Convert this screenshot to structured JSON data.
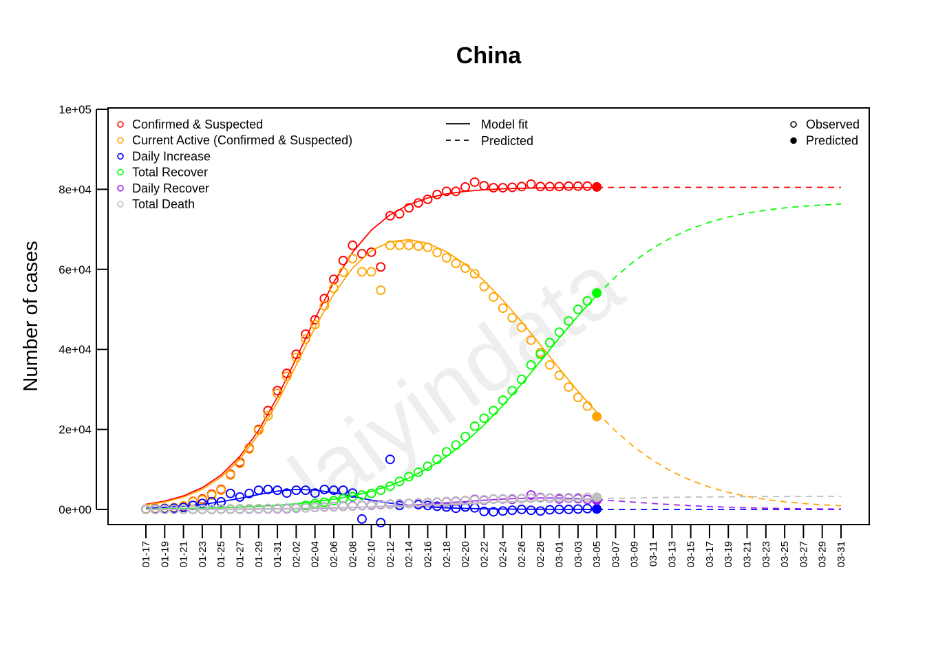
{
  "chart_data": {
    "type": "scatter",
    "title": "China",
    "xlabel": "",
    "ylabel": "Number of cases",
    "watermark": "laiyindata",
    "ylim": [
      0,
      100000
    ],
    "y_ticks": [
      0,
      20000,
      40000,
      60000,
      80000,
      100000
    ],
    "y_tick_labels": [
      "0e+00",
      "2e+04",
      "4e+04",
      "6e+04",
      "8e+04",
      "1e+05"
    ],
    "x_start_label": "01-17",
    "x_days_range": [
      0,
      74
    ],
    "x_tick_labels": [
      "01-17",
      "01-19",
      "01-21",
      "01-23",
      "01-25",
      "01-27",
      "01-29",
      "01-31",
      "02-02",
      "02-04",
      "02-06",
      "02-08",
      "02-10",
      "02-12",
      "02-14",
      "02-16",
      "02-18",
      "02-20",
      "02-22",
      "02-24",
      "02-26",
      "02-28",
      "03-01",
      "03-03",
      "03-05",
      "03-07",
      "03-09",
      "03-11",
      "03-13",
      "03-15",
      "03-17",
      "03-19",
      "03-21",
      "03-23",
      "03-25",
      "03-27",
      "03-29",
      "03-31"
    ],
    "x_tick_step_days": 2,
    "observed_days": [
      0,
      47
    ],
    "predicted_point_day": 48,
    "fit_step_days": 2,
    "grid": false,
    "legends": {
      "series": {
        "placement": "top-left",
        "entries": [
          "Confirmed & Suspected",
          "Current Active (Confirmed & Suspected)",
          "Daily Increase",
          "Total Recover",
          "Daily Recover",
          "Total Death"
        ]
      },
      "lines": {
        "placement": "top-center",
        "entries": [
          "Model fit",
          "Predicted"
        ]
      },
      "points": {
        "placement": "top-right",
        "entries": [
          "Observed",
          "Predicted"
        ]
      }
    },
    "series": [
      {
        "name": "Confirmed & Suspected",
        "color": "#FF0000",
        "observed": [
          100,
          200,
          300,
          450,
          600,
          2000,
          2600,
          3800,
          5000,
          8800,
          11800,
          15300,
          20000,
          24700,
          29700,
          34000,
          38800,
          43800,
          47400,
          52700,
          57500,
          62200,
          66000,
          63900,
          64300,
          60600,
          73400,
          73900,
          75400,
          76600,
          77500,
          78700,
          79500,
          79500,
          80600,
          81800,
          80900,
          80400,
          80400,
          80500,
          80700,
          81300,
          80700,
          80700,
          80700,
          80800,
          80800,
          80800
        ],
        "predicted_point": 80600,
        "fit": [
          1280,
          2090,
          3390,
          5440,
          8590,
          13240,
          19730,
          28070,
          37740,
          47720,
          56810,
          64250,
          69810,
          73650,
          76200,
          77840,
          78870,
          79500,
          79890,
          80130,
          80270,
          80360,
          80410,
          80440,
          80460,
          80480,
          80490,
          80490,
          80500,
          80500,
          80500,
          80500,
          80500,
          80500,
          80500,
          80500,
          80500,
          80500
        ]
      },
      {
        "name": "Current Active (Confirmed & Suspected)",
        "color": "#FFA500",
        "observed": [
          100,
          200,
          300,
          450,
          900,
          1900,
          2400,
          3600,
          4800,
          8600,
          11500,
          15100,
          19800,
          23400,
          29000,
          33300,
          38000,
          42600,
          46200,
          50900,
          55300,
          59300,
          62700,
          59400,
          59400,
          54800,
          66000,
          66000,
          66000,
          65800,
          65500,
          64200,
          62900,
          61500,
          60300,
          58900,
          55700,
          53100,
          50300,
          47900,
          45500,
          42300,
          39200,
          36100,
          33500,
          30600,
          28000,
          25800
        ],
        "predicted_point": 23200,
        "fit": [
          1106,
          1858,
          3082,
          5031,
          8046,
          12517,
          18768,
          26794,
          36047,
          45473,
          53838,
          60332,
          64659,
          66908,
          67429,
          66519,
          64400,
          61237,
          57150,
          52303,
          46870,
          41090,
          35214,
          29524,
          24252,
          19568,
          15543,
          12180,
          9455,
          7280,
          5575,
          4260,
          3250,
          2488,
          1910,
          1485,
          1153,
          914
        ]
      },
      {
        "name": "Daily Increase",
        "color": "#0000FF",
        "observed": [
          0,
          100,
          200,
          300,
          500,
          1000,
          1500,
          1900,
          1900,
          4000,
          3100,
          4000,
          4800,
          5000,
          4800,
          4100,
          4800,
          4800,
          4100,
          5000,
          4800,
          4800,
          4100,
          -2400,
          1000,
          -3300,
          12500,
          1000,
          1500,
          1200,
          1000,
          800,
          600,
          300,
          600,
          400,
          -500,
          -600,
          -400,
          -200,
          0,
          -200,
          -400,
          -100,
          0,
          0,
          100,
          200
        ],
        "predicted_point": 100,
        "fit": [
          315,
          509,
          812,
          1268,
          1918,
          2766,
          3724,
          4570,
          5010,
          4857,
          4180,
          3243,
          2315,
          1567,
          1017,
          643,
          399,
          247,
          151,
          92,
          57,
          35,
          21,
          13,
          8,
          5,
          3,
          2,
          1,
          1,
          0,
          0,
          0,
          0,
          0,
          0,
          0,
          0
        ]
      },
      {
        "name": "Total Recover",
        "color": "#00FF00",
        "observed": [
          0,
          0,
          0,
          0,
          30,
          40,
          50,
          60,
          100,
          120,
          150,
          170,
          200,
          230,
          260,
          300,
          500,
          1000,
          1500,
          1800,
          2200,
          2700,
          3200,
          3600,
          4000,
          4800,
          5800,
          7000,
          8200,
          9300,
          10800,
          12500,
          14400,
          16100,
          18200,
          20800,
          22800,
          24700,
          27300,
          29700,
          32500,
          36100,
          38800,
          41700,
          44300,
          47100,
          50000,
          52100
        ],
        "predicted_point": 54100,
        "fit": [
          131,
          177,
          238,
          321,
          433,
          583,
          786,
          1056,
          1418,
          1906,
          2550,
          3400,
          4519,
          5978,
          7857,
          10240,
          13210,
          16810,
          21090,
          25980,
          31360,
          37050,
          42810,
          48380,
          53540,
          58130,
          62070,
          65350,
          68020,
          70140,
          71800,
          73080,
          74060,
          74800,
          75360,
          75770,
          76090,
          76320
        ]
      },
      {
        "name": "Daily Recover",
        "color": "#A020F0",
        "observed": [
          0,
          0,
          0,
          0,
          0,
          10,
          20,
          30,
          40,
          60,
          80,
          100,
          120,
          150,
          180,
          200,
          300,
          400,
          500,
          600,
          700,
          800,
          900,
          1000,
          1100,
          1200,
          1300,
          1400,
          1500,
          1600,
          1700,
          1800,
          1900,
          2000,
          2200,
          2500,
          2300,
          2600,
          2600,
          2500,
          2700,
          3600,
          3000,
          2800,
          2600,
          2800,
          2700,
          2500
        ],
        "predicted_point": 2300,
        "fit": [
          20,
          26,
          36,
          48,
          65,
          87,
          117,
          156,
          209,
          279,
          370,
          488,
          638,
          827,
          1058,
          1332,
          1641,
          1971,
          2297,
          2582,
          2788,
          2883,
          2851,
          2697,
          2447,
          2136,
          1805,
          1483,
          1190,
          937,
          727,
          558,
          424,
          321,
          241,
          182,
          135,
          101
        ]
      },
      {
        "name": "Total Death",
        "color": "#BEBEBE",
        "observed": [
          0,
          0,
          0,
          6,
          9,
          17,
          25,
          41,
          56,
          80,
          106,
          132,
          170,
          213,
          259,
          304,
          361,
          425,
          490,
          563,
          636,
          722,
          811,
          908,
          1016,
          1113,
          1259,
          1380,
          1523,
          1665,
          1770,
          1868,
          2004,
          2118,
          2236,
          2345,
          2442,
          2592,
          2663,
          2715,
          2744,
          2788,
          2835,
          2870,
          2912,
          2943,
          2981,
          3012
        ],
        "predicted_point": 3050,
        "fit": [
          43,
          55,
          70,
          88,
          111,
          140,
          176,
          220,
          275,
          341,
          422,
          518,
          632,
          764,
          914,
          1081,
          1260,
          1453,
          1650,
          1847,
          2040,
          2220,
          2386,
          2536,
          2668,
          2782,
          2877,
          2960,
          3025,
          3080,
          3125,
          3160,
          3190,
          3212,
          3230,
          3245,
          3257,
          3266
        ]
      }
    ]
  }
}
